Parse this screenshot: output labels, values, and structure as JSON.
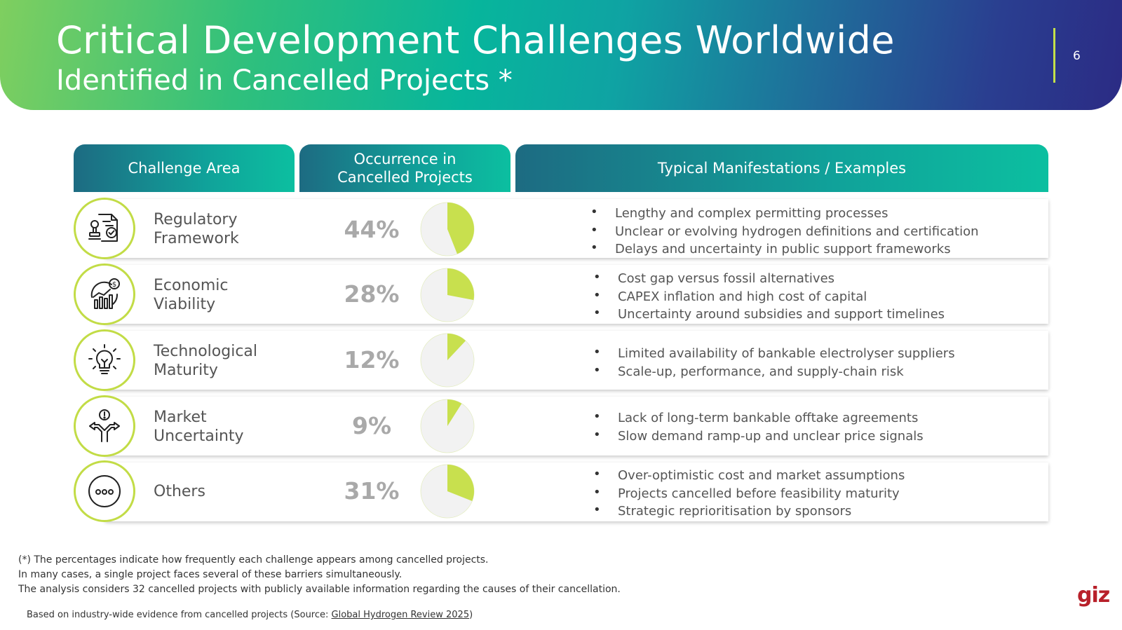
{
  "header": {
    "title": "Critical Development Challenges Worldwide",
    "subtitle": "Identified in Cancelled Projects *",
    "page_number": "6"
  },
  "table": {
    "columns": [
      "Challenge Area",
      "Occurrence in Cancelled Projects",
      "Typical Manifestations / Examples"
    ],
    "rows": [
      {
        "category": [
          "Regulatory",
          "Framework"
        ],
        "icon": "regulatory-document-stamp-icon",
        "percent_label": "44%",
        "percent": 44,
        "bullets": [
          "Lengthy and complex permitting processes",
          "Unclear or evolving hydrogen definitions and certification",
          "Delays and uncertainty in public support frameworks"
        ]
      },
      {
        "category": [
          "Economic",
          "Viability"
        ],
        "icon": "economic-growth-chart-icon",
        "percent_label": "28%",
        "percent": 28,
        "bullets": [
          "Cost gap versus fossil alternatives",
          "CAPEX inflation and high cost of capital",
          "Uncertainty around subsidies and support timelines"
        ]
      },
      {
        "category": [
          "Technological",
          "Maturity"
        ],
        "icon": "lightbulb-icon",
        "percent_label": "12%",
        "percent": 12,
        "bullets": [
          "Limited availability of bankable electrolyser suppliers",
          "Scale-up, performance, and supply-chain risk"
        ]
      },
      {
        "category": [
          "Market",
          "Uncertainty"
        ],
        "icon": "person-crossroads-icon",
        "percent_label": "9%",
        "percent": 9,
        "bullets": [
          "Lack of long-term bankable offtake agreements",
          "Slow demand ramp-up and unclear price signals"
        ]
      },
      {
        "category": [
          "Others"
        ],
        "icon": "more-dots-icon",
        "percent_label": "31%",
        "percent": 31,
        "bullets": [
          "Over-optimistic cost and market assumptions",
          "Projects cancelled before feasibility maturity",
          "Strategic reprioritisation by sponsors"
        ]
      }
    ]
  },
  "notes": [
    "(*) The percentages indicate how frequently each challenge appears among cancelled projects.",
    "In many cases, a single project faces several of these barriers simultaneously.",
    "The analysis considers 32 cancelled projects with publicly available information regarding the causes of their cancellation."
  ],
  "source": {
    "prefix": "Based on industry-wide evidence from cancelled projects (Source: ",
    "link": "Global Hydrogen Review 2025",
    "suffix": ")"
  },
  "logo": "giz",
  "colors": {
    "accent_green": "#c8e04e",
    "pie_background": "#f2f2f2",
    "percent_grey": "#a9a9a9",
    "logo_red": "#b8202a"
  }
}
